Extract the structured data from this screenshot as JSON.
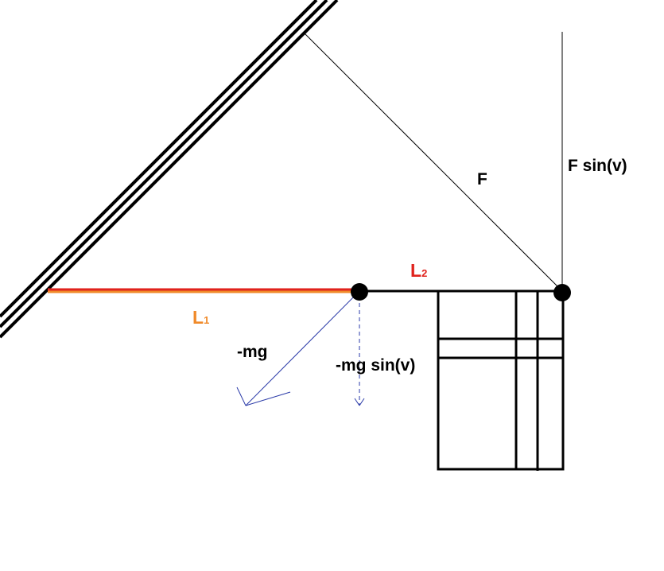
{
  "labels": {
    "F": "F",
    "F_sin_v": "F sin(v)",
    "L1_letter": "L",
    "L1_sub": "1",
    "L2_letter": "L",
    "L2_sub": "2",
    "neg_mg": "-mg",
    "neg_mg_sin_v": "-mg sin(v)"
  },
  "colors": {
    "L1_line": "#f08a2a",
    "L2_line": "#e0231d",
    "L1_text": "#f08a2a",
    "L2_text": "#e0231d",
    "force_arrow": "#2a3aa8",
    "ink": "#000000"
  }
}
